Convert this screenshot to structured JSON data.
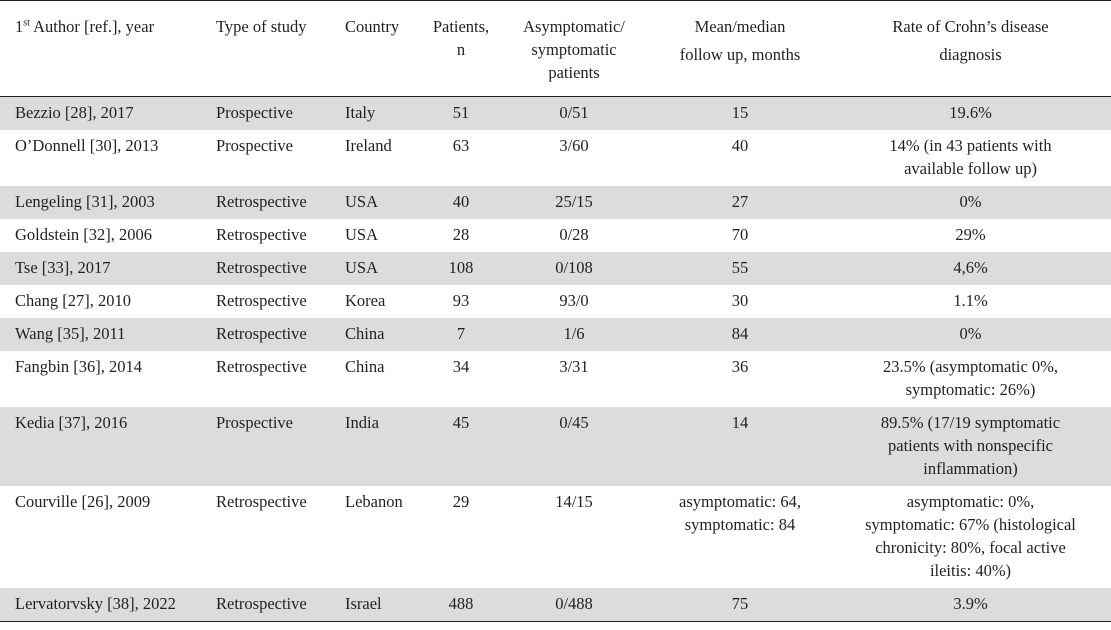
{
  "table": {
    "headers": {
      "author_prefix": "1",
      "author_sup": "st",
      "author_rest": " Author [ref.], year",
      "type": "Type of study",
      "country": "Country",
      "patients_line1": "Patients,",
      "patients_line2": "n",
      "asym_line1": "Asymptomatic/",
      "asym_line2": "symptomatic",
      "asym_line3": "patients",
      "follow_line1": "Mean/median",
      "follow_line2": "follow up, months",
      "rate_line1": "Rate of Crohn’s disease",
      "rate_line2": "diagnosis"
    },
    "rows": [
      {
        "author": "Bezzio [28], 2017",
        "type": "Prospective",
        "country": "Italy",
        "patients": "51",
        "asym": "0/51",
        "followup": [
          "15"
        ],
        "rate": [
          "19.6%"
        ]
      },
      {
        "author": "O’Donnell [30], 2013",
        "type": "Prospective",
        "country": "Ireland",
        "patients": "63",
        "asym": "3/60",
        "followup": [
          "40"
        ],
        "rate": [
          "14% (in 43 patients with",
          "available follow up)"
        ]
      },
      {
        "author": "Lengeling [31], 2003",
        "type": "Retrospective",
        "country": "USA",
        "patients": "40",
        "asym": "25/15",
        "followup": [
          "27"
        ],
        "rate": [
          "0%"
        ]
      },
      {
        "author": "Goldstein [32], 2006",
        "type": "Retrospective",
        "country": "USA",
        "patients": "28",
        "asym": "0/28",
        "followup": [
          "70"
        ],
        "rate": [
          "29%"
        ]
      },
      {
        "author": "Tse [33], 2017",
        "type": "Retrospective",
        "country": "USA",
        "patients": "108",
        "asym": "0/108",
        "followup": [
          "55"
        ],
        "rate": [
          "4,6%"
        ]
      },
      {
        "author": "Chang [27], 2010",
        "type": "Retrospective",
        "country": "Korea",
        "patients": "93",
        "asym": "93/0",
        "followup": [
          "30"
        ],
        "rate": [
          "1.1%"
        ]
      },
      {
        "author": "Wang [35], 2011",
        "type": "Retrospective",
        "country": "China",
        "patients": "7",
        "asym": "1/6",
        "followup": [
          "84"
        ],
        "rate": [
          "0%"
        ]
      },
      {
        "author": "Fangbin [36], 2014",
        "type": "Retrospective",
        "country": "China",
        "patients": "34",
        "asym": "3/31",
        "followup": [
          "36"
        ],
        "rate": [
          "23.5% (asymptomatic 0%,",
          "symptomatic: 26%)"
        ]
      },
      {
        "author": "Kedia [37], 2016",
        "type": "Prospective",
        "country": "India",
        "patients": "45",
        "asym": "0/45",
        "followup": [
          "14"
        ],
        "rate": [
          "89.5% (17/19 symptomatic",
          "patients with nonspecific",
          "inflammation)"
        ]
      },
      {
        "author": "Courville [26], 2009",
        "type": "Retrospective",
        "country": "Lebanon",
        "patients": "29",
        "asym": "14/15",
        "followup": [
          "asymptomatic: 64,",
          "symptomatic: 84"
        ],
        "rate": [
          "asymptomatic: 0%,",
          "symptomatic: 67% (histological",
          "chronicity: 80%, focal active",
          "ileitis: 40%)"
        ]
      },
      {
        "author": "Lervatorvsky [38], 2022",
        "type": "Retrospective",
        "country": "Israel",
        "patients": "488",
        "asym": "0/488",
        "followup": [
          "75"
        ],
        "rate": [
          "3.9%"
        ]
      }
    ]
  }
}
